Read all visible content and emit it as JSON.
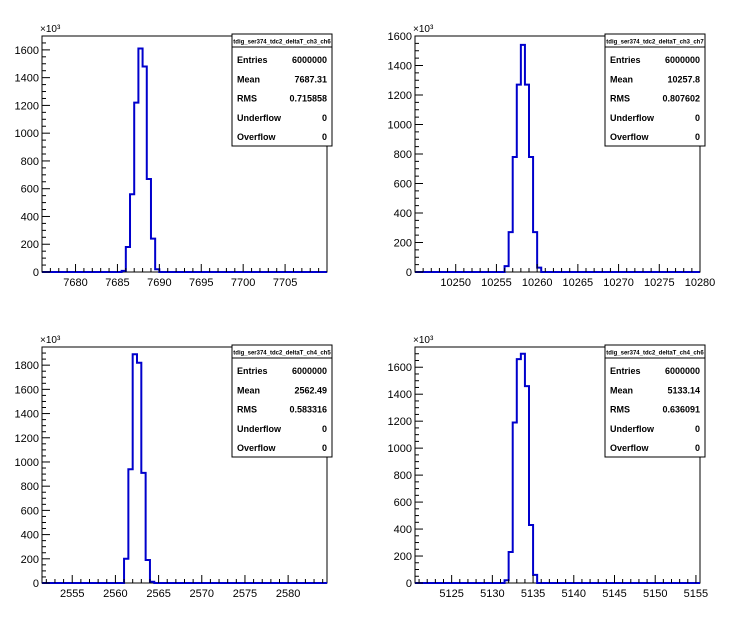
{
  "chart_data": [
    {
      "type": "histogram",
      "title": "tdig_ser374_tdc2_deltaT_ch3_ch6",
      "exponent_label": "×10³",
      "xlim": [
        7676,
        7710
      ],
      "ylim": [
        0,
        1700
      ],
      "xticks": [
        "7680",
        "7685",
        "7690",
        "7695",
        "7700",
        "7705"
      ],
      "yticks": [
        "0",
        "200",
        "400",
        "600",
        "800",
        "1000",
        "1200",
        "1400",
        "1600"
      ],
      "bin_width": 0.5,
      "bins": [
        [
          7685.5,
          8
        ],
        [
          7686,
          180
        ],
        [
          7686.5,
          560
        ],
        [
          7687,
          1220
        ],
        [
          7687.5,
          1610
        ],
        [
          7688,
          1480
        ],
        [
          7688.5,
          670
        ],
        [
          7689,
          240
        ],
        [
          7689.5,
          20
        ]
      ],
      "stats": [
        {
          "label": "Entries",
          "value": "6000000"
        },
        {
          "label": "Mean",
          "value": "7687.31"
        },
        {
          "label": "RMS",
          "value": "0.715858"
        },
        {
          "label": "Underflow",
          "value": "0"
        },
        {
          "label": "Overflow",
          "value": "0"
        }
      ]
    },
    {
      "type": "histogram",
      "title": "tdig_ser374_tdc2_deltaT_ch3_ch7",
      "exponent_label": "×10³",
      "xlim": [
        10245,
        10280
      ],
      "ylim": [
        0,
        1600
      ],
      "xticks": [
        "10250",
        "10255",
        "10260",
        "10265",
        "10270",
        "10275",
        "10280"
      ],
      "yticks": [
        "0",
        "200",
        "400",
        "600",
        "800",
        "1000",
        "1200",
        "1400",
        "1600"
      ],
      "bin_width": 0.5,
      "bins": [
        [
          10256,
          40
        ],
        [
          10256.5,
          270
        ],
        [
          10257,
          780
        ],
        [
          10257.5,
          1270
        ],
        [
          10258,
          1540
        ],
        [
          10258.5,
          1270
        ],
        [
          10259,
          780
        ],
        [
          10259.5,
          270
        ],
        [
          10260,
          30
        ]
      ],
      "stats": [
        {
          "label": "Entries",
          "value": "6000000"
        },
        {
          "label": "Mean",
          "value": "10257.8"
        },
        {
          "label": "RMS",
          "value": "0.807602"
        },
        {
          "label": "Underflow",
          "value": "0"
        },
        {
          "label": "Overflow",
          "value": "0"
        }
      ]
    },
    {
      "type": "histogram",
      "title": "tdig_ser374_tdc2_deltaT_ch4_ch5",
      "exponent_label": "×10³",
      "xlim": [
        2551.5,
        2584.5
      ],
      "ylim": [
        0,
        1950
      ],
      "xticks": [
        "2555",
        "2560",
        "2565",
        "2570",
        "2575",
        "2580"
      ],
      "yticks": [
        "0",
        "200",
        "400",
        "600",
        "800",
        "1000",
        "1200",
        "1400",
        "1600",
        "1800"
      ],
      "bin_width": 0.5,
      "bins": [
        [
          2561,
          200
        ],
        [
          2561.5,
          940
        ],
        [
          2562,
          1890
        ],
        [
          2562.5,
          1820
        ],
        [
          2563,
          910
        ],
        [
          2563.5,
          190
        ],
        [
          2564,
          10
        ]
      ],
      "stats": [
        {
          "label": "Entries",
          "value": "6000000"
        },
        {
          "label": "Mean",
          "value": "2562.49"
        },
        {
          "label": "RMS",
          "value": "0.583316"
        },
        {
          "label": "Underflow",
          "value": "0"
        },
        {
          "label": "Overflow",
          "value": "0"
        }
      ]
    },
    {
      "type": "histogram",
      "title": "tdig_ser374_tdc2_deltaT_ch4_ch6",
      "exponent_label": "×10³",
      "xlim": [
        5120.5,
        5155.5
      ],
      "ylim": [
        0,
        1750
      ],
      "xticks": [
        "5125",
        "5130",
        "5135",
        "5140",
        "5145",
        "5150",
        "5155"
      ],
      "yticks": [
        "0",
        "200",
        "400",
        "600",
        "800",
        "1000",
        "1200",
        "1400",
        "1600"
      ],
      "bin_width": 0.5,
      "bins": [
        [
          5131.5,
          20
        ],
        [
          5132,
          230
        ],
        [
          5132.5,
          1190
        ],
        [
          5133,
          1660
        ],
        [
          5133.5,
          1700
        ],
        [
          5134,
          1460
        ],
        [
          5134.5,
          430
        ],
        [
          5135,
          60
        ]
      ],
      "stats": [
        {
          "label": "Entries",
          "value": "6000000"
        },
        {
          "label": "Mean",
          "value": "5133.14"
        },
        {
          "label": "RMS",
          "value": "0.636091"
        },
        {
          "label": "Underflow",
          "value": "0"
        },
        {
          "label": "Overflow",
          "value": "0"
        }
      ]
    }
  ]
}
